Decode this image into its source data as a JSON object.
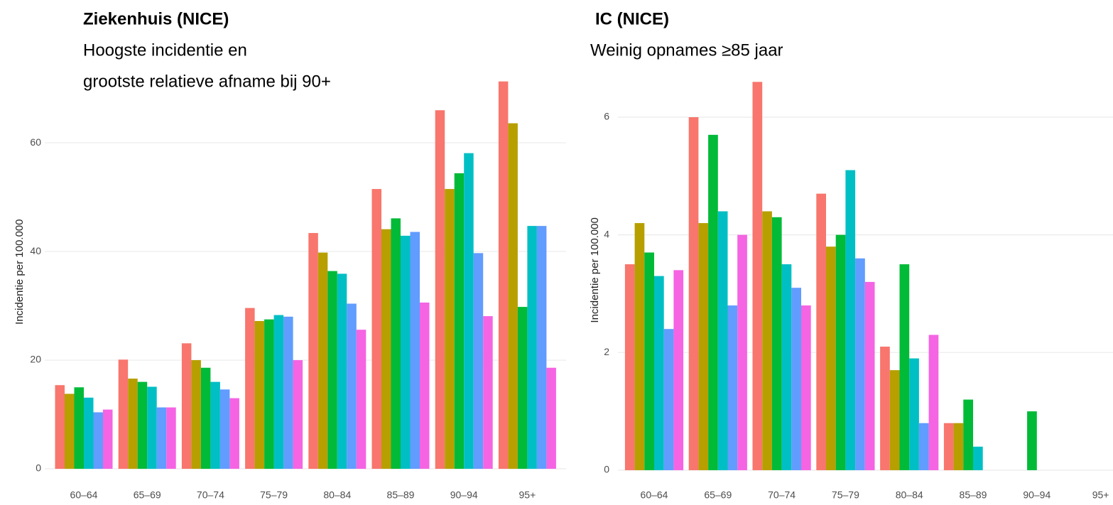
{
  "chart_data": [
    {
      "type": "bar",
      "title": "Ziekenhuis (NICE)",
      "subtitle_lines": [
        "Hoogste incidentie en",
        "grootste relatieve afname bij 90+"
      ],
      "y_label": "Incidentie per 100.000",
      "categories": [
        "60–64",
        "65–69",
        "70–74",
        "75–79",
        "80–84",
        "85–89",
        "90–94",
        "95+"
      ],
      "series": [
        {
          "color": "#F8766D",
          "values": [
            15.4,
            20.1,
            23.1,
            29.6,
            43.4,
            51.5,
            66.0,
            71.3
          ]
        },
        {
          "color": "#B79F00",
          "values": [
            13.8,
            16.6,
            20.0,
            27.2,
            39.8,
            44.1,
            51.5,
            63.6
          ]
        },
        {
          "color": "#00BA38",
          "values": [
            15.0,
            16.0,
            18.6,
            27.5,
            36.4,
            46.1,
            54.4,
            29.8
          ]
        },
        {
          "color": "#00BFC4",
          "values": [
            13.1,
            15.1,
            16.0,
            28.3,
            35.9,
            42.9,
            58.1,
            44.7
          ]
        },
        {
          "color": "#619CFF",
          "values": [
            10.4,
            11.3,
            14.6,
            28.0,
            30.4,
            43.6,
            39.7,
            44.7
          ]
        },
        {
          "color": "#F564E3",
          "values": [
            10.9,
            11.3,
            13.0,
            20.0,
            25.6,
            30.6,
            28.1,
            18.6
          ]
        }
      ],
      "ylim": [
        -1.5,
        74
      ],
      "yticks": [
        0,
        20,
        40,
        60
      ],
      "grid": true
    },
    {
      "type": "bar",
      "title": "IC (NICE)",
      "subtitle_lines": [
        "Weinig opnames ≥85 jaar"
      ],
      "y_label": "Incidentie per 100.000",
      "categories": [
        "60–64",
        "65–69",
        "70–74",
        "75–79",
        "80–84",
        "85–89",
        "90–94",
        "95+"
      ],
      "series": [
        {
          "color": "#F8766D",
          "values": [
            3.5,
            6.0,
            6.6,
            4.7,
            2.1,
            0.8,
            0,
            0
          ]
        },
        {
          "color": "#B79F00",
          "values": [
            4.2,
            4.2,
            4.4,
            3.8,
            1.7,
            0.8,
            0,
            0
          ]
        },
        {
          "color": "#00BA38",
          "values": [
            3.7,
            5.7,
            4.3,
            4.0,
            3.5,
            1.2,
            1.0,
            0
          ]
        },
        {
          "color": "#00BFC4",
          "values": [
            3.3,
            4.4,
            3.5,
            5.1,
            1.9,
            0.4,
            0,
            0
          ]
        },
        {
          "color": "#619CFF",
          "values": [
            2.4,
            2.8,
            3.1,
            3.6,
            0.8,
            0,
            0,
            0
          ]
        },
        {
          "color": "#F564E3",
          "values": [
            3.4,
            4.0,
            2.8,
            3.2,
            2.3,
            0,
            0,
            0
          ]
        }
      ],
      "ylim": [
        -0.15,
        6.95
      ],
      "yticks": [
        0,
        2,
        4,
        6
      ],
      "grid": true
    }
  ]
}
